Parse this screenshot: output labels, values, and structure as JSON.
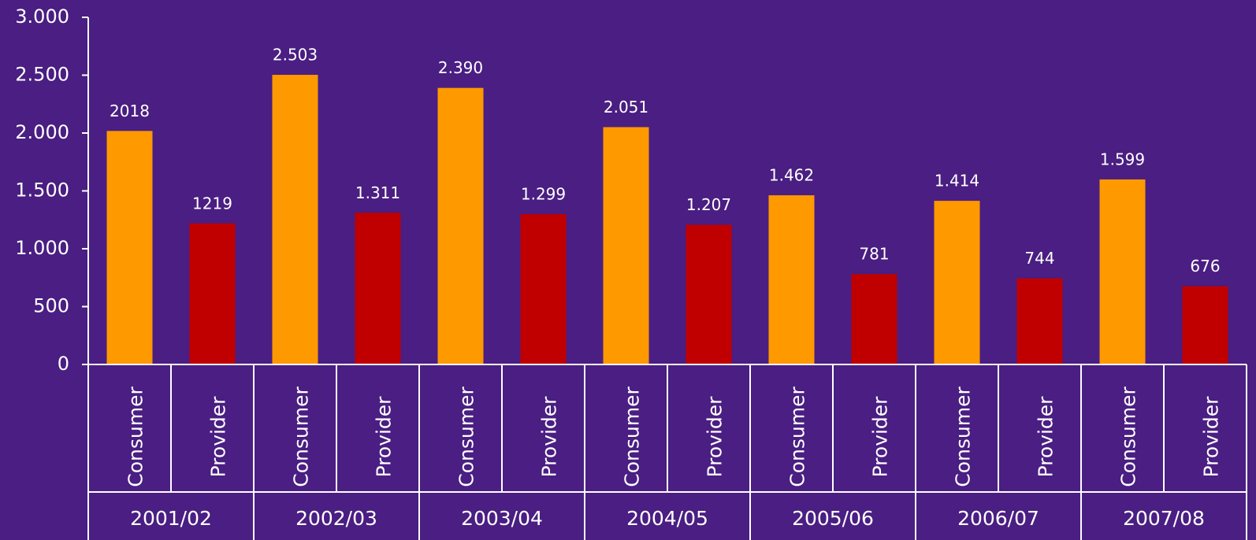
{
  "chart_data": {
    "type": "bar",
    "categories": [
      "Consumer",
      "Provider",
      "Consumer",
      "Provider",
      "Consumer",
      "Provider",
      "Consumer",
      "Provider",
      "Consumer",
      "Provider",
      "Consumer",
      "Provider",
      "Consumer",
      "Provider"
    ],
    "groups": [
      "2001/02",
      "2002/03",
      "2003/04",
      "2004/05",
      "2005/06",
      "2006/07",
      "2007/08"
    ],
    "values": [
      2018,
      1219,
      2503,
      1311,
      2390,
      1299,
      2051,
      1207,
      1462,
      781,
      1414,
      744,
      1599,
      676
    ],
    "value_labels": [
      "2018",
      "1219",
      "2.503",
      "1.311",
      "2.390",
      "1.299",
      "2.051",
      "1.207",
      "1.462",
      "781",
      "1.414",
      "744",
      "1.599",
      "676"
    ],
    "colors": [
      "#ff9900",
      "#c00000",
      "#ff9900",
      "#c00000",
      "#ff9900",
      "#c00000",
      "#ff9900",
      "#c00000",
      "#ff9900",
      "#c00000",
      "#ff9900",
      "#c00000",
      "#ff9900",
      "#c00000"
    ],
    "ylim": [
      0,
      3000
    ],
    "yticks": [
      0,
      500,
      {
        "value": 1000,
        "label": "1.000"
      },
      {
        "value": 1500,
        "label": "1.500"
      },
      {
        "value": 2000,
        "label": "2.000"
      },
      {
        "value": 2500,
        "label": "2.500"
      },
      {
        "value": 3000,
        "label": "3.000"
      }
    ]
  }
}
